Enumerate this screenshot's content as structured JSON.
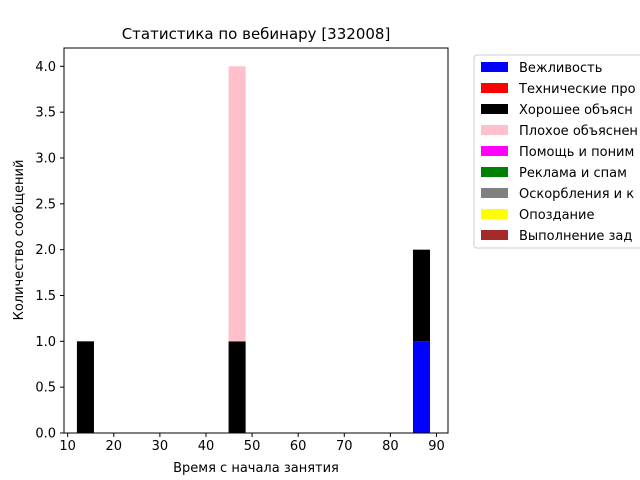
{
  "chart_data": {
    "type": "bar",
    "stacked": true,
    "title": "Статистика по вебинару [332008]",
    "xlabel": "Время с начала занятия",
    "ylabel": "Количество сообщений",
    "xlim": [
      9.2,
      92.5
    ],
    "ylim": [
      0,
      4.2
    ],
    "xticks": [
      "10",
      "20",
      "30",
      "40",
      "50",
      "60",
      "70",
      "80",
      "90"
    ],
    "yticks": [
      "0.0",
      "0.5",
      "1.0",
      "1.5",
      "2.0",
      "2.5",
      "3.0",
      "3.5",
      "4.0"
    ],
    "bin_width": 3.7,
    "x": [
      12.0,
      44.9,
      84.9
    ],
    "series": [
      {
        "name": "Вежливость",
        "color": "#0000ff",
        "values": [
          0,
          0,
          1
        ]
      },
      {
        "name": "Технические про",
        "color": "#ff0000",
        "values": [
          0,
          0,
          0
        ]
      },
      {
        "name": "Хорошее объясн",
        "color": "#000000",
        "values": [
          1,
          1,
          1
        ]
      },
      {
        "name": "Плохое объяснен",
        "color": "#ffc0cb",
        "values": [
          0,
          3,
          0
        ]
      },
      {
        "name": "Помощь и поним",
        "color": "#ff00ff",
        "values": [
          0,
          0,
          0
        ]
      },
      {
        "name": "Реклама и спам",
        "color": "#008000",
        "values": [
          0,
          0,
          0
        ]
      },
      {
        "name": "Оскорбления и к",
        "color": "#808080",
        "values": [
          0,
          0,
          0
        ]
      },
      {
        "name": "Опоздание",
        "color": "#ffff00",
        "values": [
          0,
          0,
          0
        ]
      },
      {
        "name": "Выполнение зад",
        "color": "#a52a2a",
        "values": [
          0,
          0,
          0
        ]
      }
    ],
    "legend_position": "outside-right",
    "grid": false
  }
}
